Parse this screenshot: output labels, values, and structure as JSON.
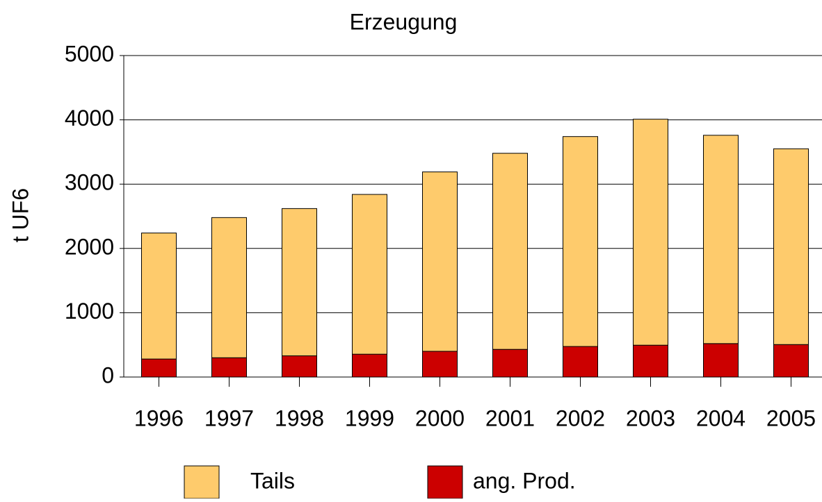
{
  "chart_data": {
    "type": "stacked_bar",
    "title": "Erzeugung",
    "y_label": "t UF6",
    "categories": [
      "1996",
      "1997",
      "1998",
      "1999",
      "2000",
      "2001",
      "2002",
      "2003",
      "2004",
      "2005"
    ],
    "series": [
      {
        "name": "Tails",
        "color": "#fecb6c",
        "values": [
          1960,
          2180,
          2290,
          2485,
          2790,
          3050,
          3265,
          3515,
          3240,
          3045
        ]
      },
      {
        "name": "ang. Prod.",
        "color": "#cc0000",
        "values": [
          280,
          300,
          330,
          355,
          400,
          430,
          475,
          495,
          520,
          505
        ]
      }
    ],
    "stack_order": [
      1,
      0
    ],
    "ylim": [
      0,
      5000
    ],
    "yticks": [
      0,
      1000,
      2000,
      3000,
      4000,
      5000
    ],
    "grid": true
  }
}
